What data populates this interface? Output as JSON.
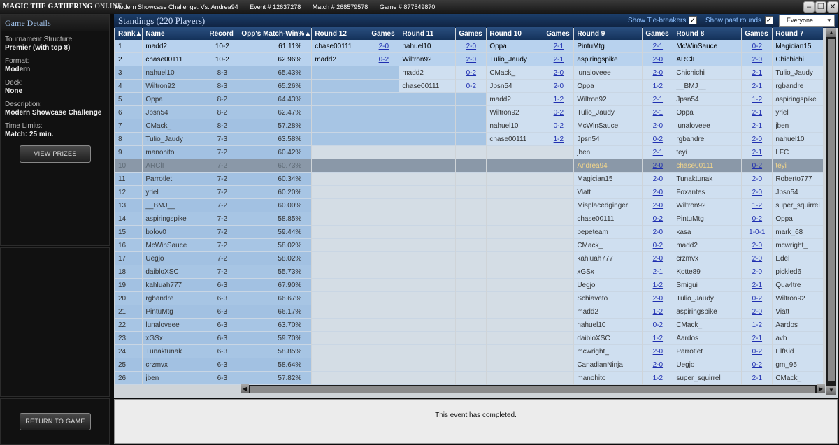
{
  "window": {
    "logo_main": "MAGIC THE GATHERING",
    "logo_sub": "ONLINE",
    "title": "Modern Showcase Challenge: Vs. Andrea94",
    "event": "Event # 12637278",
    "match": "Match # 268579578",
    "game": "Game # 877549870"
  },
  "details": {
    "heading": "Game Details",
    "structure_label": "Tournament Structure:",
    "structure_value": "Premier (with top 8)",
    "format_label": "Format:",
    "format_value": "Modern",
    "deck_label": "Deck:",
    "deck_value": "None",
    "description_label": "Description:",
    "description_value": "Modern Showcase Challenge",
    "time_label": "Time Limits:",
    "time_value": "Match: 25 min.",
    "view_prizes": "VIEW PRIZES",
    "return_to_game": "RETURN TO GAME"
  },
  "standings": {
    "title": "Standings (220 Players)",
    "show_tiebreakers": "Show Tie-breakers",
    "show_past_rounds": "Show past rounds",
    "filter": "Everyone",
    "headers": [
      "Rank▲",
      "Name",
      "Record",
      "Opp's Match-Win%▲",
      "Round 12",
      "Games",
      "Round 11",
      "Games",
      "Round 10",
      "Games",
      "Round 9",
      "Games",
      "Round 8",
      "Games",
      "Round 7"
    ],
    "rows": [
      [
        "1",
        "madd2",
        "10-2",
        "61.11%",
        "chase00111",
        "2-0",
        "nahuel10",
        "2-0",
        "Oppa",
        "2-1",
        "PintuMtg",
        "2-1",
        "McWinSauce",
        "0-2",
        "Magician15"
      ],
      [
        "2",
        "chase00111",
        "10-2",
        "62.96%",
        "madd2",
        "0-2",
        "Wiltron92",
        "2-0",
        "Tulio_Jaudy",
        "2-1",
        "aspiringspike",
        "2-0",
        "ARClI",
        "2-0",
        "Chichichi"
      ],
      [
        "3",
        "nahuel10",
        "8-3",
        "65.43%",
        "",
        "",
        "madd2",
        "0-2",
        "CMack_",
        "2-0",
        "lunaloveee",
        "2-0",
        "Chichichi",
        "2-1",
        "Tulio_Jaudy"
      ],
      [
        "4",
        "Wiltron92",
        "8-3",
        "65.26%",
        "",
        "",
        "chase00111",
        "0-2",
        "Jpsn54",
        "2-0",
        "Oppa",
        "1-2",
        "__BMJ__",
        "2-1",
        "rgbandre"
      ],
      [
        "5",
        "Oppa",
        "8-2",
        "64.43%",
        "",
        "",
        "",
        "",
        "madd2",
        "1-2",
        "Wiltron92",
        "2-1",
        "Jpsn54",
        "1-2",
        "aspiringspike"
      ],
      [
        "6",
        "Jpsn54",
        "8-2",
        "62.47%",
        "",
        "",
        "",
        "",
        "Wiltron92",
        "0-2",
        "Tulio_Jaudy",
        "2-1",
        "Oppa",
        "2-1",
        "yriel"
      ],
      [
        "7",
        "CMack_",
        "8-2",
        "57.28%",
        "",
        "",
        "",
        "",
        "nahuel10",
        "0-2",
        "McWinSauce",
        "2-0",
        "lunaloveee",
        "2-1",
        "jben"
      ],
      [
        "8",
        "Tulio_Jaudy",
        "7-3",
        "63.58%",
        "",
        "",
        "",
        "",
        "chase00111",
        "1-2",
        "Jpsn54",
        "0-2",
        "rgbandre",
        "2-0",
        "nahuel10"
      ],
      [
        "9",
        "manohito",
        "7-2",
        "60.42%",
        "",
        "",
        "",
        "",
        "",
        "",
        "jben",
        "2-1",
        "teyi",
        "2-1",
        "LFC"
      ],
      [
        "10",
        "ARClI",
        "7-2",
        "60.73%",
        "",
        "",
        "",
        "",
        "",
        "",
        "Andrea94",
        "2-0",
        "chase00111",
        "0-2",
        "teyi"
      ],
      [
        "11",
        "Parrotlet",
        "7-2",
        "60.34%",
        "",
        "",
        "",
        "",
        "",
        "",
        "Magician15",
        "2-0",
        "Tunaktunak",
        "2-0",
        "Roberto777"
      ],
      [
        "12",
        "yriel",
        "7-2",
        "60.20%",
        "",
        "",
        "",
        "",
        "",
        "",
        "Viatt",
        "2-0",
        "Foxantes",
        "2-0",
        "Jpsn54"
      ],
      [
        "13",
        "__BMJ__",
        "7-2",
        "60.00%",
        "",
        "",
        "",
        "",
        "",
        "",
        "Misplacedginger",
        "2-0",
        "Wiltron92",
        "1-2",
        "super_squirrel"
      ],
      [
        "14",
        "aspiringspike",
        "7-2",
        "58.85%",
        "",
        "",
        "",
        "",
        "",
        "",
        "chase00111",
        "0-2",
        "PintuMtg",
        "0-2",
        "Oppa"
      ],
      [
        "15",
        "bolov0",
        "7-2",
        "59.44%",
        "",
        "",
        "",
        "",
        "",
        "",
        "pepeteam",
        "2-0",
        "kasa",
        "1-0-1",
        "mark_68"
      ],
      [
        "16",
        "McWinSauce",
        "7-2",
        "58.02%",
        "",
        "",
        "",
        "",
        "",
        "",
        "CMack_",
        "0-2",
        "madd2",
        "2-0",
        "mcwright_"
      ],
      [
        "17",
        "Uegjo",
        "7-2",
        "58.02%",
        "",
        "",
        "",
        "",
        "",
        "",
        "kahluah777",
        "2-0",
        "crzmvx",
        "2-0",
        "Edel"
      ],
      [
        "18",
        "daibloXSC",
        "7-2",
        "55.73%",
        "",
        "",
        "",
        "",
        "",
        "",
        "xGSx",
        "2-1",
        "Kotte89",
        "2-0",
        "pickled6"
      ],
      [
        "19",
        "kahluah777",
        "6-3",
        "67.90%",
        "",
        "",
        "",
        "",
        "",
        "",
        "Uegjo",
        "1-2",
        "Smigui",
        "2-1",
        "Qua4tre"
      ],
      [
        "20",
        "rgbandre",
        "6-3",
        "66.67%",
        "",
        "",
        "",
        "",
        "",
        "",
        "Schiaveto",
        "2-0",
        "Tulio_Jaudy",
        "0-2",
        "Wiltron92"
      ],
      [
        "21",
        "PintuMtg",
        "6-3",
        "66.17%",
        "",
        "",
        "",
        "",
        "",
        "",
        "madd2",
        "1-2",
        "aspiringspike",
        "2-0",
        "Viatt"
      ],
      [
        "22",
        "lunaloveee",
        "6-3",
        "63.70%",
        "",
        "",
        "",
        "",
        "",
        "",
        "nahuel10",
        "0-2",
        "CMack_",
        "1-2",
        "Aardos"
      ],
      [
        "23",
        "xGSx",
        "6-3",
        "59.70%",
        "",
        "",
        "",
        "",
        "",
        "",
        "daibloXSC",
        "1-2",
        "Aardos",
        "2-1",
        "avb"
      ],
      [
        "24",
        "Tunaktunak",
        "6-3",
        "58.85%",
        "",
        "",
        "",
        "",
        "",
        "",
        "mcwright_",
        "2-0",
        "Parrotlet",
        "0-2",
        "ElfKid"
      ],
      [
        "25",
        "crzmvx",
        "6-3",
        "58.64%",
        "",
        "",
        "",
        "",
        "",
        "",
        "CanadianNinja",
        "2-0",
        "Uegjo",
        "0-2",
        "gm_95"
      ],
      [
        "26",
        "jben",
        "6-3",
        "57.82%",
        "",
        "",
        "",
        "",
        "",
        "",
        "manohito",
        "1-2",
        "super_squirrel",
        "2-1",
        "CMack_"
      ]
    ]
  },
  "status_message": "This event has completed."
}
